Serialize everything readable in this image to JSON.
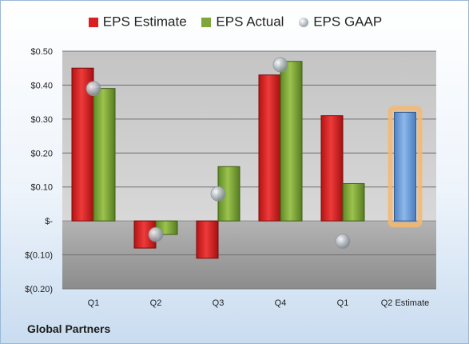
{
  "company": "Global Partners",
  "chart_data": {
    "type": "bar",
    "categories": [
      "Q1",
      "Q2",
      "Q3",
      "Q4",
      "Q1",
      "Q2 Estimate"
    ],
    "series": [
      {
        "name": "EPS Estimate",
        "type": "bar",
        "color": "#d82020",
        "values": [
          0.45,
          -0.08,
          -0.11,
          0.43,
          0.31,
          null
        ]
      },
      {
        "name": "EPS Actual",
        "type": "bar",
        "color": "#7fa63a",
        "values": [
          0.39,
          -0.04,
          0.16,
          0.47,
          0.11,
          null
        ]
      },
      {
        "name": "EPS GAAP",
        "type": "scatter",
        "color": "#a8b0b8",
        "values": [
          0.39,
          -0.04,
          0.08,
          0.46,
          -0.06,
          null
        ]
      },
      {
        "name": "",
        "type": "bar",
        "color": "#6f9ed8",
        "highlight": "#f5b870",
        "values": [
          null,
          null,
          null,
          null,
          null,
          0.32
        ]
      }
    ],
    "yticks": [
      0.5,
      0.4,
      0.3,
      0.2,
      0.1,
      0,
      -0.1,
      -0.2
    ],
    "ytick_labels": [
      "$0.50",
      "$0.40",
      "$0.30",
      "$0.20",
      "$0.10",
      "$-",
      "$(0.10)",
      "$(0.20)"
    ],
    "ylim": [
      -0.2,
      0.5
    ],
    "legend_position": "top",
    "grid": true
  }
}
